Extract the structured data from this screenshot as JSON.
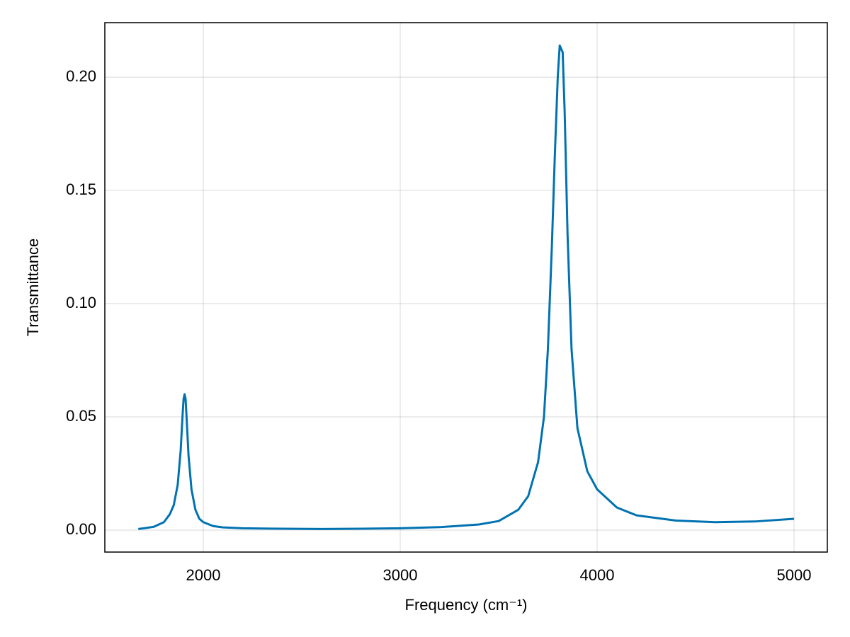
{
  "chart_data": {
    "type": "line",
    "xlabel": "Frequency (cm⁻¹)",
    "ylabel": "Transmittance",
    "x": [
      1670,
      1700,
      1750,
      1800,
      1830,
      1850,
      1870,
      1885,
      1895,
      1900,
      1905,
      1910,
      1915,
      1925,
      1940,
      1960,
      1980,
      2000,
      2050,
      2100,
      2200,
      2400,
      2600,
      2800,
      3000,
      3200,
      3400,
      3500,
      3600,
      3650,
      3700,
      3730,
      3750,
      3770,
      3785,
      3800,
      3810,
      3815,
      3825,
      3835,
      3850,
      3870,
      3900,
      3950,
      4000,
      4100,
      4200,
      4400,
      4600,
      4800,
      5000
    ],
    "series": [
      {
        "name": "Transmittance",
        "color": "#0072b2",
        "values": [
          0.0005,
          0.0008,
          0.0015,
          0.0035,
          0.007,
          0.011,
          0.02,
          0.035,
          0.051,
          0.058,
          0.06,
          0.058,
          0.05,
          0.033,
          0.018,
          0.009,
          0.005,
          0.0035,
          0.0018,
          0.0012,
          0.0008,
          0.0006,
          0.0005,
          0.0006,
          0.0008,
          0.0013,
          0.0025,
          0.004,
          0.009,
          0.015,
          0.03,
          0.05,
          0.08,
          0.125,
          0.165,
          0.2,
          0.214,
          0.213,
          0.211,
          0.185,
          0.13,
          0.08,
          0.045,
          0.026,
          0.018,
          0.01,
          0.0065,
          0.0042,
          0.0035,
          0.0038,
          0.005
        ]
      }
    ],
    "xlim": [
      1500,
      5169
    ],
    "ylim": [
      -0.0097,
      0.2241
    ],
    "xticks": [
      2000,
      3000,
      4000,
      5000
    ],
    "yticks": [
      {
        "value": 0,
        "label": "0.00"
      },
      {
        "value": 0.05,
        "label": "0.05"
      },
      {
        "value": 0.1,
        "label": "0.10"
      },
      {
        "value": 0.15,
        "label": "0.15"
      },
      {
        "value": 0.2,
        "label": "0.20"
      }
    ],
    "grid": true
  }
}
